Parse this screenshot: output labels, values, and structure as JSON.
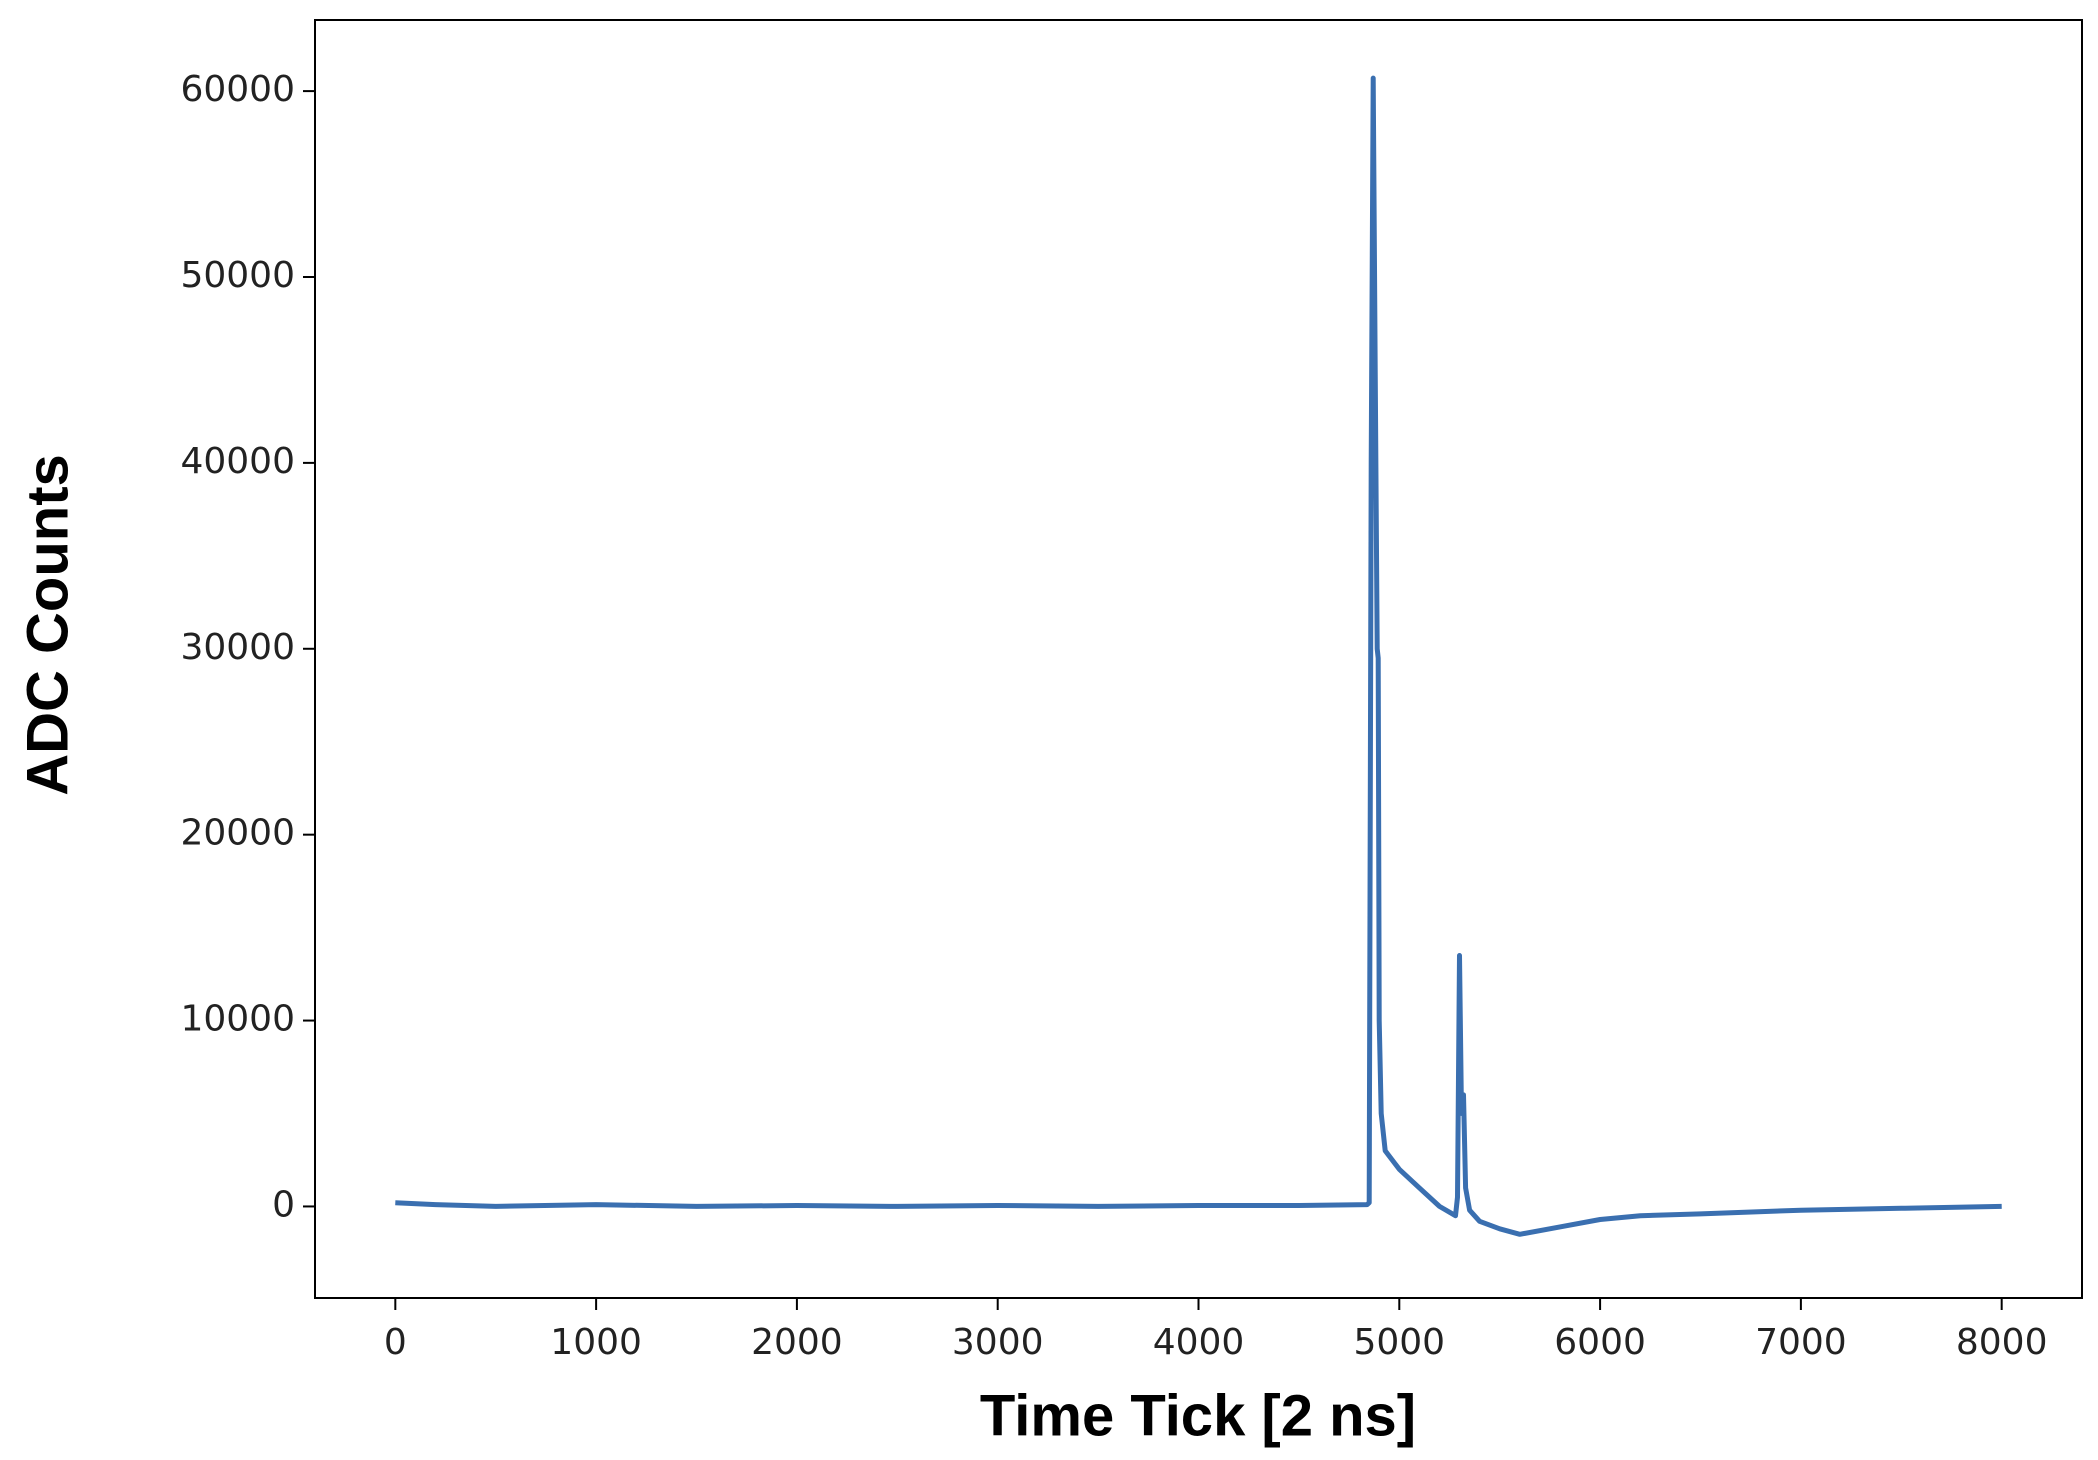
{
  "chart_data": {
    "type": "line",
    "xlabel": "Time Tick [2 ns]",
    "ylabel": "ADC Counts",
    "x": [
      0,
      200,
      500,
      1000,
      1500,
      2000,
      2500,
      3000,
      3500,
      4000,
      4500,
      4840,
      4850,
      4860,
      4870,
      4880,
      4890,
      4895,
      4900,
      4910,
      4930,
      5000,
      5100,
      5200,
      5280,
      5290,
      5300,
      5310,
      5320,
      5330,
      5350,
      5400,
      5500,
      5600,
      5800,
      6000,
      6200,
      6500,
      7000,
      7500,
      8000
    ],
    "series": [
      {
        "name": "ADC",
        "color": "#3a6fb0",
        "values": [
          200,
          100,
          0,
          100,
          0,
          50,
          0,
          50,
          0,
          50,
          50,
          100,
          200,
          40000,
          60700,
          45000,
          30000,
          29500,
          10000,
          5000,
          3000,
          2000,
          1000,
          0,
          -500,
          500,
          13500,
          5000,
          6000,
          1000,
          -200,
          -800,
          -1200,
          -1500,
          -1100,
          -700,
          -500,
          -400,
          -200,
          -100,
          0
        ]
      }
    ],
    "xlim": [
      -400,
      8400
    ],
    "ylim": [
      -4925,
      63825
    ],
    "xticks": [
      0,
      1000,
      2000,
      3000,
      4000,
      5000,
      6000,
      7000,
      8000
    ],
    "yticks": [
      0,
      10000,
      20000,
      30000,
      40000,
      50000,
      60000
    ],
    "grid": false
  }
}
